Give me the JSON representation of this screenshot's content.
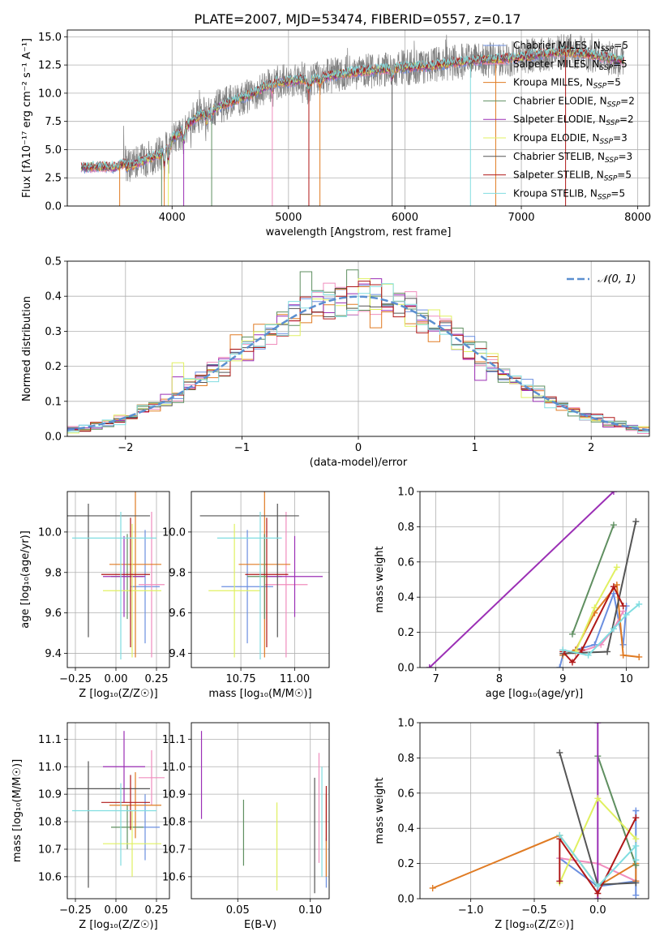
{
  "figure_title": "PLATE=2007, MJD=53474, FIBERID=0557, z=0.17",
  "colors": {
    "Chabrier MILES": "#6b8fe0",
    "Salpeter MILES": "#f08dbd",
    "Kroupa MILES": "#e07b23",
    "Chabrier ELODIE": "#5f8f60",
    "Salpeter ELODIE": "#9b2fb5",
    "Kroupa ELODIE": "#e0f060",
    "Chabrier STELIB": "#555555",
    "Salpeter STELIB": "#b01818",
    "Kroupa STELIB": "#80dde0",
    "data": "#808080",
    "gauss": "#5b8fd0"
  },
  "chart_data": [
    {
      "type": "line",
      "title": "PLATE=2007, MJD=53474, FIBERID=0557, z=0.17",
      "xlabel": "wavelength [Angstrom, rest frame]",
      "ylabel": "Flux [fλ10⁻¹⁷ erg cm⁻² s⁻¹ A⁻¹]",
      "xlim": [
        3100,
        8100
      ],
      "ylim": [
        0,
        15.6
      ],
      "xticks": [
        4000,
        5000,
        6000,
        7000,
        8000
      ],
      "yticks": [
        0.0,
        2.5,
        5.0,
        7.5,
        10.0,
        12.5,
        15.0
      ],
      "legend_position": "right",
      "legend": [
        "Chabrier MILES, N_SSP=5",
        "Salpeter MILES, N_SSP=5",
        "Kroupa MILES, N_SSP=5",
        "Chabrier ELODIE, N_SSP=2",
        "Salpeter ELODIE, N_SSP=2",
        "Kroupa ELODIE, N_SSP=3",
        "Chabrier STELIB, N_SSP=3",
        "Salpeter STELIB, N_SSP=5",
        "Kroupa STELIB, N_SSP=5"
      ],
      "continuum": {
        "wavelength": [
          3220,
          3400,
          3500,
          3600,
          3700,
          3800,
          3900,
          4000,
          4100,
          4200,
          4300,
          4400,
          4500,
          4600,
          4700,
          4800,
          4900,
          5000,
          5100,
          5200,
          5300,
          5400,
          5500,
          5600,
          5700,
          5800,
          5900,
          6000,
          6200,
          6400,
          6600,
          6800,
          7000,
          7200,
          7400,
          7600,
          7800,
          7880
        ],
        "flux": [
          3.4,
          3.5,
          3.4,
          3.8,
          4.2,
          4.6,
          5.0,
          6.0,
          6.8,
          7.8,
          8.4,
          8.8,
          9.2,
          9.6,
          10.0,
          10.6,
          11.0,
          11.0,
          11.2,
          11.3,
          11.4,
          11.6,
          11.8,
          11.9,
          12.0,
          12.1,
          12.2,
          12.3,
          12.4,
          12.7,
          12.9,
          13.0,
          13.2,
          13.5,
          13.7,
          13.4,
          13.0,
          12.9
        ]
      },
      "lines": [
        3550,
        3910,
        3933,
        3968,
        4100,
        4340,
        4861,
        5175,
        5270,
        5890,
        6563,
        6780,
        7380
      ]
    },
    {
      "type": "bar",
      "title": "",
      "xlabel": "(data-model)/error",
      "ylabel": "Normed distribution",
      "xlim": [
        -2.5,
        2.5
      ],
      "ylim": [
        0,
        0.5
      ],
      "xticks": [
        -2,
        -1,
        0,
        1,
        2
      ],
      "yticks": [
        0.0,
        0.1,
        0.2,
        0.3,
        0.4,
        0.5
      ],
      "bin_width": 0.1,
      "legend": [
        "𝒩(0, 1)"
      ],
      "legend_position": "top-right",
      "highlight_bins": {
        "Chabrier ELODIE": {
          "-0.45": 0.47,
          "-0.05": 0.475,
          "1.15": 0.21
        },
        "Salpeter ELODIE": {
          "-0.85": 0.29,
          "-1.55": 0.17,
          "0.15": 0.45,
          "1.05": 0.16
        },
        "Kroupa ELODIE": {
          "0.05": 0.45,
          "-1.55": 0.21,
          "-1.95": 0.05
        },
        "Kroupa MILES": {
          "-1.05": 0.29,
          "0.15": 0.31,
          "-0.15": 0.42
        }
      }
    },
    {
      "type": "scatter",
      "title": "",
      "xlabel": "Z [log₁₀(Z/Z☉)]",
      "ylabel": "age  [log₁₀(age/yr)]",
      "xlim": [
        -0.3,
        0.33
      ],
      "ylim": [
        9.33,
        10.2
      ],
      "xticks": [
        -0.25,
        0.0,
        0.25
      ],
      "yticks": [
        9.4,
        9.6,
        9.8,
        10.0
      ],
      "points": [
        {
          "model": "Chabrier MILES",
          "x": 0.18,
          "y": 9.73,
          "xerr": [
            0.09,
            0.09
          ],
          "yerr": [
            0.28,
            0.28
          ]
        },
        {
          "model": "Salpeter MILES",
          "x": 0.22,
          "y": 9.74,
          "xerr": [
            0.08,
            0.08
          ],
          "yerr": [
            0.36,
            0.36
          ]
        },
        {
          "model": "Kroupa MILES",
          "x": 0.12,
          "y": 9.84,
          "xerr": [
            0.16,
            0.16
          ],
          "yerr": [
            0.46,
            0.46
          ]
        },
        {
          "model": "Chabrier ELODIE",
          "x": 0.07,
          "y": 9.78,
          "xerr": [
            0.1,
            0.1
          ],
          "yerr": [
            0.21,
            0.21
          ]
        },
        {
          "model": "Salpeter ELODIE",
          "x": 0.05,
          "y": 9.78,
          "xerr": [
            0.13,
            0.13
          ],
          "yerr": [
            0.2,
            0.2
          ]
        },
        {
          "model": "Kroupa ELODIE",
          "x": 0.1,
          "y": 9.71,
          "xerr": [
            0.18,
            0.18
          ],
          "yerr": [
            0.33,
            0.33
          ]
        },
        {
          "model": "Chabrier STELIB",
          "x": -0.17,
          "y": 10.08,
          "xerr": [
            0.13,
            0.38
          ],
          "yerr": [
            0.6,
            0.06
          ]
        },
        {
          "model": "Salpeter STELIB",
          "x": 0.09,
          "y": 9.79,
          "xerr": [
            0.18,
            0.12
          ],
          "yerr": [
            0.36,
            0.28
          ]
        },
        {
          "model": "Kroupa STELIB",
          "x": 0.03,
          "y": 9.97,
          "xerr": [
            0.3,
            0.22
          ],
          "yerr": [
            0.6,
            0.13
          ]
        }
      ]
    },
    {
      "type": "scatter",
      "title": "",
      "xlabel": "mass [log₁₀(M/M☉)]",
      "ylabel": "",
      "xlim": [
        10.52,
        11.16
      ],
      "ylim": [
        9.33,
        10.2
      ],
      "xticks": [
        10.75,
        11.0
      ],
      "yticks": [
        9.4,
        9.6,
        9.8,
        10.0
      ],
      "points": [
        {
          "model": "Chabrier MILES",
          "x": 10.78,
          "y": 9.73,
          "xerr": [
            0.12,
            0.12
          ],
          "yerr": [
            0.28,
            0.28
          ]
        },
        {
          "model": "Salpeter MILES",
          "x": 10.96,
          "y": 9.74,
          "xerr": [
            0.1,
            0.1
          ],
          "yerr": [
            0.36,
            0.36
          ]
        },
        {
          "model": "Kroupa MILES",
          "x": 10.86,
          "y": 9.84,
          "xerr": [
            0.12,
            0.12
          ],
          "yerr": [
            0.46,
            0.46
          ]
        },
        {
          "model": "Chabrier ELODIE",
          "x": 10.86,
          "y": 9.78,
          "xerr": [
            0.08,
            0.08
          ],
          "yerr": [
            0.21,
            0.21
          ]
        },
        {
          "model": "Salpeter ELODIE",
          "x": 11.0,
          "y": 9.78,
          "xerr": [
            0.13,
            0.13
          ],
          "yerr": [
            0.2,
            0.2
          ]
        },
        {
          "model": "Kroupa ELODIE",
          "x": 10.72,
          "y": 9.71,
          "xerr": [
            0.12,
            0.12
          ],
          "yerr": [
            0.33,
            0.33
          ]
        },
        {
          "model": "Chabrier STELIB",
          "x": 10.92,
          "y": 10.08,
          "xerr": [
            0.36,
            0.1
          ],
          "yerr": [
            0.6,
            0.06
          ]
        },
        {
          "model": "Salpeter STELIB",
          "x": 10.87,
          "y": 9.79,
          "xerr": [
            0.1,
            0.1
          ],
          "yerr": [
            0.36,
            0.28
          ]
        },
        {
          "model": "Kroupa STELIB",
          "x": 10.84,
          "y": 9.97,
          "xerr": [
            0.2,
            0.1
          ],
          "yerr": [
            0.6,
            0.13
          ]
        }
      ]
    },
    {
      "type": "line",
      "title": "",
      "xlabel": "age  [log₁₀(age/yr)]",
      "ylabel": "mass weight",
      "xlim": [
        6.75,
        10.35
      ],
      "ylim": [
        0,
        1.0
      ],
      "xticks": [
        7,
        8,
        9,
        10
      ],
      "yticks": [
        0.0,
        0.2,
        0.4,
        0.6,
        0.8,
        1.0
      ],
      "series": [
        {
          "model": "Chabrier MILES",
          "x": [
            8.95,
            9.0,
            9.2,
            9.5,
            9.8,
            9.95,
            10.0
          ],
          "y": [
            0.0,
            0.07,
            0.1,
            0.13,
            0.42,
            0.13,
            0.35
          ]
        },
        {
          "model": "Salpeter MILES",
          "x": [
            9.0,
            9.2,
            9.6,
            9.8,
            9.95
          ],
          "y": [
            0.1,
            0.08,
            0.13,
            0.22,
            0.32
          ]
        },
        {
          "model": "Kroupa MILES",
          "x": [
            9.0,
            9.2,
            9.5,
            9.85,
            9.95,
            10.2
          ],
          "y": [
            0.07,
            0.1,
            0.31,
            0.47,
            0.07,
            0.06
          ]
        },
        {
          "model": "Chabrier ELODIE",
          "x": [
            9.15,
            9.8
          ],
          "y": [
            0.19,
            0.81
          ]
        },
        {
          "model": "Salpeter ELODIE",
          "x": [
            6.9,
            9.8
          ],
          "y": [
            0.0,
            1.0
          ]
        },
        {
          "model": "Kroupa ELODIE",
          "x": [
            9.2,
            9.5,
            9.85
          ],
          "y": [
            0.09,
            0.34,
            0.57
          ]
        },
        {
          "model": "Chabrier STELIB",
          "x": [
            9.0,
            9.7,
            10.15
          ],
          "y": [
            0.08,
            0.09,
            0.83
          ]
        },
        {
          "model": "Salpeter STELIB",
          "x": [
            9.0,
            9.15,
            9.3,
            9.8,
            9.95
          ],
          "y": [
            0.09,
            0.03,
            0.1,
            0.46,
            0.35
          ]
        },
        {
          "model": "Kroupa STELIB",
          "x": [
            9.0,
            9.4,
            9.8,
            10.0,
            10.2
          ],
          "y": [
            0.1,
            0.07,
            0.22,
            0.3,
            0.36
          ]
        }
      ]
    },
    {
      "type": "scatter",
      "title": "",
      "xlabel": "Z [log₁₀(Z/Z☉)]",
      "ylabel": "mass [log₁₀(M/M☉)]",
      "xlim": [
        -0.3,
        0.33
      ],
      "ylim": [
        10.52,
        11.16
      ],
      "xticks": [
        -0.25,
        0.0,
        0.25
      ],
      "yticks": [
        10.6,
        10.7,
        10.8,
        10.9,
        11.0,
        11.1
      ],
      "points": [
        {
          "model": "Chabrier MILES",
          "x": 0.18,
          "y": 10.78,
          "xerr": [
            0.09,
            0.09
          ],
          "yerr": [
            0.12,
            0.12
          ]
        },
        {
          "model": "Salpeter MILES",
          "x": 0.22,
          "y": 10.96,
          "xerr": [
            0.08,
            0.08
          ],
          "yerr": [
            0.1,
            0.1
          ]
        },
        {
          "model": "Kroupa MILES",
          "x": 0.12,
          "y": 10.86,
          "xerr": [
            0.16,
            0.16
          ],
          "yerr": [
            0.12,
            0.12
          ]
        },
        {
          "model": "Chabrier ELODIE",
          "x": 0.07,
          "y": 10.78,
          "xerr": [
            0.1,
            0.1
          ],
          "yerr": [
            0.08,
            0.08
          ]
        },
        {
          "model": "Salpeter ELODIE",
          "x": 0.05,
          "y": 11.0,
          "xerr": [
            0.13,
            0.13
          ],
          "yerr": [
            0.13,
            0.13
          ]
        },
        {
          "model": "Kroupa ELODIE",
          "x": 0.1,
          "y": 10.72,
          "xerr": [
            0.18,
            0.18
          ],
          "yerr": [
            0.12,
            0.12
          ]
        },
        {
          "model": "Chabrier STELIB",
          "x": -0.17,
          "y": 10.92,
          "xerr": [
            0.13,
            0.38
          ],
          "yerr": [
            0.36,
            0.1
          ]
        },
        {
          "model": "Salpeter STELIB",
          "x": 0.09,
          "y": 10.87,
          "xerr": [
            0.18,
            0.12
          ],
          "yerr": [
            0.1,
            0.1
          ]
        },
        {
          "model": "Kroupa STELIB",
          "x": 0.03,
          "y": 10.84,
          "xerr": [
            0.3,
            0.22
          ],
          "yerr": [
            0.2,
            0.1
          ]
        }
      ]
    },
    {
      "type": "scatter",
      "title": "",
      "xlabel": "E(B-V)",
      "ylabel": "",
      "xlim": [
        0.018,
        0.113
      ],
      "ylim": [
        10.52,
        11.16
      ],
      "xticks": [
        0.05,
        0.1
      ],
      "yticks": [
        10.6,
        10.7,
        10.8,
        10.9,
        11.0,
        11.1
      ],
      "points": [
        {
          "model": "Chabrier MILES",
          "x": 0.111,
          "y": 10.65,
          "xerr": [
            0,
            0
          ],
          "yerr": [
            0.09,
            0.09
          ]
        },
        {
          "model": "Salpeter MILES",
          "x": 0.106,
          "y": 10.85,
          "xerr": [
            0,
            0
          ],
          "yerr": [
            0.2,
            0.2
          ]
        },
        {
          "model": "Kroupa MILES",
          "x": 0.111,
          "y": 10.75,
          "xerr": [
            0,
            0
          ],
          "yerr": [
            0.15,
            0.15
          ]
        },
        {
          "model": "Chabrier ELODIE",
          "x": 0.054,
          "y": 10.76,
          "xerr": [
            0,
            0
          ],
          "yerr": [
            0.12,
            0.12
          ]
        },
        {
          "model": "Salpeter ELODIE",
          "x": 0.025,
          "y": 10.97,
          "xerr": [
            0,
            0
          ],
          "yerr": [
            0.16,
            0.16
          ]
        },
        {
          "model": "Kroupa ELODIE",
          "x": 0.077,
          "y": 10.71,
          "xerr": [
            0,
            0
          ],
          "yerr": [
            0.16,
            0.16
          ]
        },
        {
          "model": "Chabrier STELIB",
          "x": 0.103,
          "y": 10.75,
          "xerr": [
            0,
            0
          ],
          "yerr": [
            0.21,
            0.21
          ]
        },
        {
          "model": "Salpeter STELIB",
          "x": 0.111,
          "y": 10.83,
          "xerr": [
            0,
            0
          ],
          "yerr": [
            0.1,
            0.1
          ]
        },
        {
          "model": "Kroupa STELIB",
          "x": 0.108,
          "y": 10.8,
          "xerr": [
            0,
            0
          ],
          "yerr": [
            0.2,
            0.2
          ]
        }
      ]
    },
    {
      "type": "line",
      "title": "",
      "xlabel": "Z [log₁₀(Z/Z☉)]",
      "ylabel": "mass weight",
      "xlim": [
        -1.4,
        0.4
      ],
      "ylim": [
        0,
        1.0
      ],
      "xticks": [
        -1.0,
        -0.5,
        0.0
      ],
      "yticks": [
        0.0,
        0.2,
        0.4,
        0.6,
        0.8,
        1.0
      ],
      "series": [
        {
          "model": "Chabrier MILES",
          "x": [
            -0.3,
            0.0,
            0.3,
            0.3,
            0.3
          ],
          "y": [
            0.23,
            0.07,
            0.1,
            0.5,
            0.02
          ]
        },
        {
          "model": "Salpeter MILES",
          "x": [
            -0.3,
            0.0,
            0.3
          ],
          "y": [
            0.23,
            0.2,
            0.1
          ]
        },
        {
          "model": "Kroupa MILES",
          "x": [
            -1.3,
            -0.3,
            0.0,
            0.3,
            0.3
          ],
          "y": [
            0.06,
            0.36,
            0.07,
            0.2,
            0.1
          ]
        },
        {
          "model": "Chabrier ELODIE",
          "x": [
            0.0,
            0.3
          ],
          "y": [
            0.81,
            0.19
          ]
        },
        {
          "model": "Salpeter ELODIE",
          "x": [
            0.0,
            0.0
          ],
          "y": [
            0.0,
            1.0
          ]
        },
        {
          "model": "Kroupa ELODIE",
          "x": [
            -0.3,
            0.0,
            0.3
          ],
          "y": [
            0.09,
            0.57,
            0.34
          ]
        },
        {
          "model": "Chabrier STELIB",
          "x": [
            -0.3,
            0.0,
            0.3
          ],
          "y": [
            0.83,
            0.08,
            0.09
          ]
        },
        {
          "model": "Salpeter STELIB",
          "x": [
            -0.3,
            -0.3,
            0.0,
            0.3
          ],
          "y": [
            0.1,
            0.34,
            0.03,
            0.46
          ]
        },
        {
          "model": "Kroupa STELIB",
          "x": [
            -0.3,
            0.0,
            0.3,
            0.3
          ],
          "y": [
            0.36,
            0.07,
            0.3,
            0.22
          ]
        }
      ]
    }
  ]
}
